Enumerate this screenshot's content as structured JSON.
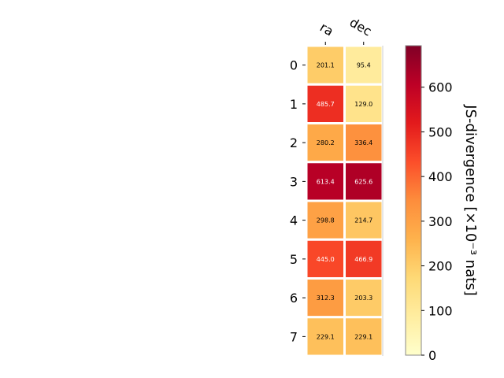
{
  "chart_data": {
    "type": "heatmap",
    "title": "",
    "columns": [
      "ra",
      "dec"
    ],
    "rows": [
      "0",
      "1",
      "2",
      "3",
      "4",
      "5",
      "6",
      "7"
    ],
    "values": [
      [
        201.1,
        95.4
      ],
      [
        485.7,
        129.0
      ],
      [
        280.2,
        336.4
      ],
      [
        613.4,
        625.6
      ],
      [
        298.8,
        214.7
      ],
      [
        445.0,
        466.9
      ],
      [
        312.3,
        203.3
      ],
      [
        229.1,
        229.1
      ]
    ],
    "value_labels": [
      [
        "201.1",
        "95.4"
      ],
      [
        "485.7",
        "129.0"
      ],
      [
        "280.2",
        "336.4"
      ],
      [
        "613.4",
        "625.6"
      ],
      [
        "298.8",
        "214.7"
      ],
      [
        "445.0",
        "466.9"
      ],
      [
        "312.3",
        "203.3"
      ],
      [
        "229.1",
        "229.1"
      ]
    ],
    "colorbar": {
      "label": "JS-divergence [×10⁻³ nats]",
      "range": [
        0,
        693
      ],
      "ticks": [
        0,
        100,
        200,
        300,
        400,
        500,
        600
      ],
      "colormap": "YlOrRd"
    }
  }
}
